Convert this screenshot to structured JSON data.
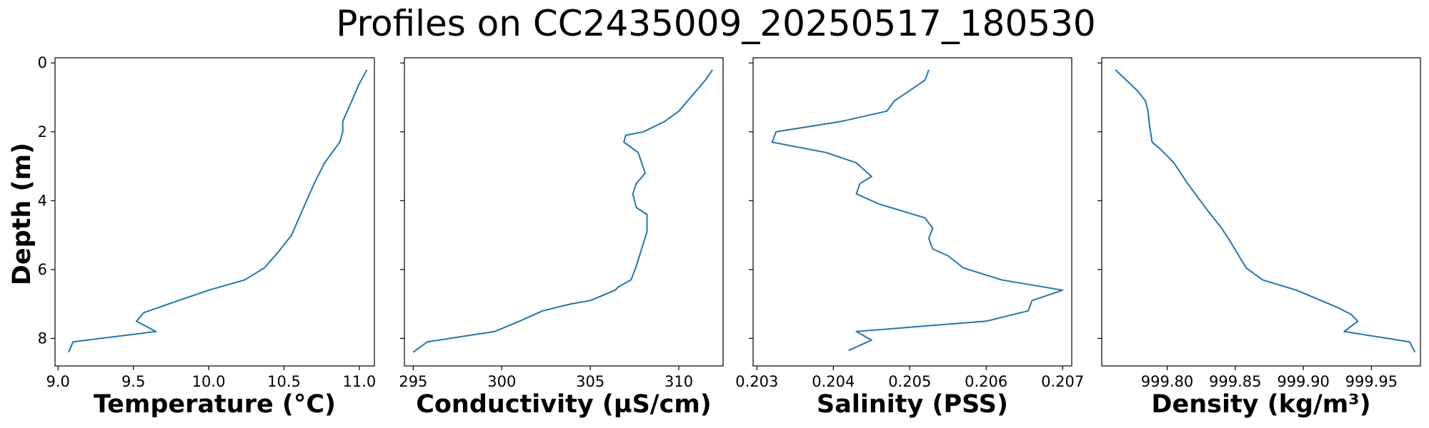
{
  "figure": {
    "title": "Profiles on CC2435009_20250517_180530",
    "ylabel": "Depth (m)"
  },
  "chart_data": [
    {
      "type": "line",
      "xlabel": "Temperature (°C)",
      "ylabel": "Depth (m)",
      "xlim": [
        8.98,
        11.1
      ],
      "ylim": [
        8.8,
        -0.15
      ],
      "y_inverted": true,
      "xticks": [
        9.0,
        9.5,
        10.0,
        10.5,
        11.0
      ],
      "xtick_labels": [
        "9.0",
        "9.5",
        "10.0",
        "10.5",
        "11.0"
      ],
      "yticks": [
        0,
        2,
        4,
        6,
        8
      ],
      "ytick_labels": [
        "0",
        "2",
        "4",
        "6",
        "8"
      ],
      "grid": false,
      "color": "#1f77b4",
      "series": [
        {
          "x": [
            11.05,
            11.0,
            10.95,
            10.89,
            10.89,
            10.87,
            10.77,
            10.7,
            10.63,
            10.55,
            10.46,
            10.37,
            10.24,
            10.0,
            9.8,
            9.57,
            9.52,
            9.65,
            9.1,
            9.07
          ],
          "y": [
            0.2,
            0.6,
            1.1,
            1.7,
            2.0,
            2.3,
            2.9,
            3.5,
            4.2,
            5.0,
            5.5,
            5.95,
            6.3,
            6.6,
            6.9,
            7.25,
            7.5,
            7.8,
            8.1,
            8.4
          ]
        }
      ]
    },
    {
      "type": "line",
      "xlabel": "Conductivity (µS/cm)",
      "ylabel": "Depth (m)",
      "xlim": [
        294.5,
        312.5
      ],
      "ylim": [
        8.8,
        -0.15
      ],
      "y_inverted": true,
      "xticks": [
        295,
        300,
        305,
        310
      ],
      "xtick_labels": [
        "295",
        "300",
        "305",
        "310"
      ],
      "yticks": [
        0,
        2,
        4,
        6,
        8
      ],
      "ytick_labels": [
        "0",
        "2",
        "4",
        "6",
        "8"
      ],
      "grid": false,
      "color": "#1f77b4",
      "series": [
        {
          "x": [
            311.9,
            311.5,
            310.5,
            310.0,
            309.2,
            308.0,
            307.0,
            306.9,
            307.7,
            308.1,
            307.6,
            307.4,
            307.6,
            308.2,
            308.2,
            307.9,
            307.6,
            307.3,
            306.6,
            306.4,
            305.0,
            303.9,
            302.3,
            301.0,
            299.6,
            295.8,
            295.0
          ],
          "y": [
            0.2,
            0.5,
            1.1,
            1.4,
            1.7,
            2.0,
            2.1,
            2.3,
            2.6,
            3.2,
            3.5,
            3.8,
            4.2,
            4.4,
            4.9,
            5.4,
            5.9,
            6.3,
            6.5,
            6.6,
            6.9,
            7.0,
            7.2,
            7.5,
            7.8,
            8.1,
            8.4
          ]
        }
      ]
    },
    {
      "type": "line",
      "xlabel": "Salinity (PSS)",
      "ylabel": "Depth (m)",
      "xlim": [
        0.20295,
        0.20712
      ],
      "ylim": [
        8.8,
        -0.15
      ],
      "y_inverted": true,
      "xticks": [
        0.203,
        0.204,
        0.205,
        0.206,
        0.207
      ],
      "xtick_labels": [
        "0.203",
        "0.204",
        "0.205",
        "0.206",
        "0.207"
      ],
      "yticks": [
        0,
        2,
        4,
        6,
        8
      ],
      "ytick_labels": [
        "0",
        "2",
        "4",
        "6",
        "8"
      ],
      "grid": false,
      "color": "#1f77b4",
      "series": [
        {
          "x": [
            0.20525,
            0.2052,
            0.205,
            0.2048,
            0.2047,
            0.2041,
            0.20325,
            0.2032,
            0.2039,
            0.2043,
            0.2045,
            0.20435,
            0.2043,
            0.2046,
            0.2052,
            0.2053,
            0.20525,
            0.2053,
            0.2055,
            0.2057,
            0.2062,
            0.207,
            0.2066,
            0.20655,
            0.206,
            0.2043,
            0.2045,
            0.2042
          ],
          "y": [
            0.2,
            0.5,
            0.8,
            1.1,
            1.4,
            1.7,
            2.0,
            2.3,
            2.6,
            2.9,
            3.3,
            3.5,
            3.8,
            4.1,
            4.5,
            4.8,
            5.1,
            5.4,
            5.6,
            5.95,
            6.3,
            6.6,
            6.9,
            7.2,
            7.5,
            7.8,
            8.05,
            8.35
          ]
        }
      ]
    },
    {
      "type": "line",
      "xlabel": "Density (kg/m³)",
      "ylabel": "Depth (m)",
      "xlim": [
        999.752,
        999.986
      ],
      "ylim": [
        8.8,
        -0.15
      ],
      "y_inverted": true,
      "xticks": [
        999.8,
        999.85,
        999.9,
        999.95
      ],
      "xtick_labels": [
        "999.80",
        "999.85",
        "999.90",
        "999.95"
      ],
      "yticks": [
        0,
        2,
        4,
        6,
        8
      ],
      "ytick_labels": [
        "0",
        "2",
        "4",
        "6",
        "8"
      ],
      "grid": false,
      "color": "#1f77b4",
      "series": [
        {
          "x": [
            999.762,
            999.77,
            999.778,
            999.784,
            999.786,
            999.787,
            999.789,
            999.795,
            999.805,
            999.815,
            999.83,
            999.84,
            999.845,
            999.858,
            999.87,
            999.895,
            999.925,
            999.935,
            999.94,
            999.93,
            999.978,
            999.982
          ],
          "y": [
            0.2,
            0.5,
            0.8,
            1.1,
            1.4,
            1.8,
            2.3,
            2.5,
            2.9,
            3.5,
            4.3,
            4.8,
            5.1,
            5.95,
            6.3,
            6.6,
            7.1,
            7.3,
            7.5,
            7.8,
            8.1,
            8.4
          ]
        }
      ]
    }
  ]
}
